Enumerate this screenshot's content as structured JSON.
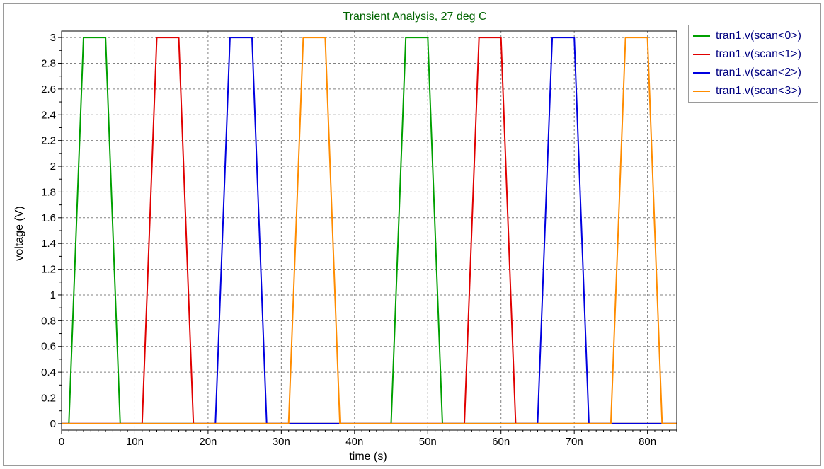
{
  "chart_data": {
    "type": "line",
    "title": "Transient Analysis, 27 deg C",
    "xlabel": "time (s)",
    "ylabel": "voltage (V)",
    "xlim": [
      0,
      84
    ],
    "ylim": [
      -0.05,
      3.05
    ],
    "x_unit_suffix": "n",
    "grid": true,
    "legend_position": "top-right-outside",
    "x_ticks": [
      0,
      10,
      20,
      30,
      40,
      50,
      60,
      70,
      80
    ],
    "x_tick_labels": [
      "0",
      "10n",
      "20n",
      "30n",
      "40n",
      "50n",
      "60n",
      "70n",
      "80n"
    ],
    "y_ticks": [
      0,
      0.2,
      0.4,
      0.6,
      0.8,
      1,
      1.2,
      1.4,
      1.6,
      1.8,
      2,
      2.2,
      2.4,
      2.6,
      2.8,
      3
    ],
    "y_tick_labels": [
      "0",
      "0.2",
      "0.4",
      "0.6",
      "0.8",
      "1",
      "1.2",
      "1.4",
      "1.6",
      "1.8",
      "2",
      "2.2",
      "2.4",
      "2.6",
      "2.8",
      "3"
    ],
    "series": [
      {
        "name": "tran1.v(scan<0>)",
        "color": "#00a000",
        "x": [
          0,
          1,
          3,
          6,
          8,
          45,
          47,
          50,
          52,
          84
        ],
        "y": [
          0,
          0,
          3,
          3,
          0,
          0,
          3,
          3,
          0,
          0
        ]
      },
      {
        "name": "tran1.v(scan<1>)",
        "color": "#e00000",
        "x": [
          0,
          11,
          13,
          16,
          18,
          55,
          57,
          60,
          62,
          84
        ],
        "y": [
          0,
          0,
          3,
          3,
          0,
          0,
          3,
          3,
          0,
          0
        ]
      },
      {
        "name": "tran1.v(scan<2>)",
        "color": "#0000e0",
        "x": [
          0,
          21,
          23,
          26,
          28,
          65,
          67,
          70,
          72,
          84
        ],
        "y": [
          0,
          0,
          3,
          3,
          0,
          0,
          3,
          3,
          0,
          0
        ]
      },
      {
        "name": "tran1.v(scan<3>)",
        "color": "#ff8c00",
        "x": [
          0,
          31,
          33,
          36,
          38,
          75,
          77,
          80,
          82,
          84
        ],
        "y": [
          0,
          0,
          3,
          3,
          0,
          0,
          3,
          3,
          0,
          0
        ]
      }
    ]
  }
}
